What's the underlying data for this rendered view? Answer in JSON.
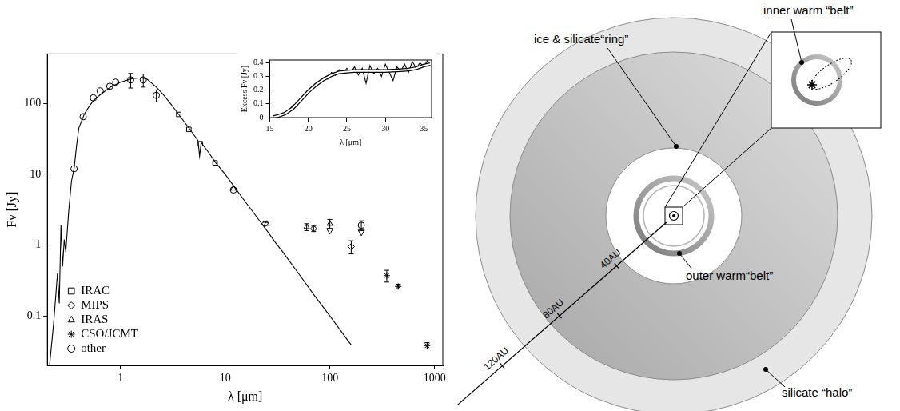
{
  "chart_data": [
    {
      "type": "scatter",
      "x_label": "λ [μm]",
      "y_label": "Fν [Jy]",
      "log": true,
      "grid": false,
      "legend": "lower left",
      "xlim": [
        0.2,
        1200
      ],
      "xticks": [
        1,
        10,
        100,
        1000
      ],
      "ylim": [
        0.02,
        500
      ],
      "yticks": [
        0.1,
        1,
        10,
        100
      ],
      "series": [
        {
          "type": "line",
          "color": "#000000",
          "marker": "none",
          "line_style": "solid",
          "x": [
            0.21,
            0.23,
            0.25,
            0.26,
            0.27,
            0.28,
            0.29,
            0.3,
            0.32,
            0.34,
            0.36,
            0.38,
            0.4,
            0.45,
            0.5,
            0.55,
            0.65,
            0.8,
            1.0,
            1.3,
            1.6,
            1.8,
            2.2,
            2.6,
            3.0,
            3.6,
            4.5,
            5.5,
            5.7,
            5.9,
            7,
            8,
            10,
            12,
            15,
            20,
            25,
            30,
            35,
            50,
            70,
            100,
            150,
            160
          ],
          "values": [
            0.02,
            0.08,
            0.4,
            0.15,
            1.9,
            0.5,
            1.2,
            0.8,
            3,
            8,
            12,
            25,
            45,
            70,
            90,
            110,
            135,
            170,
            200,
            225,
            230,
            220,
            170,
            130,
            100,
            70,
            45,
            30,
            18,
            28,
            20,
            15,
            10,
            6.9,
            4.4,
            2.5,
            1.6,
            1.1,
            0.82,
            0.4,
            0.2,
            0.1,
            0.044,
            0.039
          ]
        },
        {
          "name": "IRAC",
          "type": "scatter",
          "color": "#000000",
          "marker": "square",
          "x": [
            3.6,
            4.5,
            5.8,
            8
          ],
          "values": [
            70,
            43,
            27,
            14.5
          ]
        },
        {
          "name": "MIPS",
          "type": "scatter",
          "color": "#000000",
          "marker": "diamond",
          "x": [
            24,
            70,
            160
          ],
          "values": [
            2.0,
            1.7,
            0.95
          ],
          "errors": [
            0.1,
            0.15,
            0.2
          ]
        },
        {
          "name": "IRAS",
          "type": "scatter",
          "color": "#000000",
          "marker": "triangle",
          "x": [
            12,
            25,
            60,
            100
          ],
          "values": [
            6.3,
            2.0,
            1.8,
            2.0
          ],
          "errors": [
            null,
            null,
            0.2,
            0.3
          ],
          "upper_limits": [
            false,
            false,
            false,
            true
          ]
        },
        {
          "name": "CSO/JCMT",
          "type": "scatter",
          "color": "#000000",
          "marker": "asterisk",
          "x": [
            350,
            450,
            850
          ],
          "values": [
            0.37,
            0.26,
            0.038
          ],
          "errors": [
            0.07,
            0.02,
            0.004
          ]
        },
        {
          "name": "other",
          "type": "scatter",
          "color": "#000000",
          "marker": "circle",
          "x": [
            0.36,
            0.44,
            0.55,
            0.64,
            0.79,
            0.9,
            1.25,
            1.65,
            2.2,
            12,
            200
          ],
          "values": [
            12,
            65,
            120,
            150,
            175,
            200,
            215,
            215,
            130,
            6.0,
            1.9
          ],
          "errors": [
            null,
            null,
            null,
            null,
            null,
            null,
            50,
            45,
            25,
            null,
            0.3
          ],
          "upper_limits": [
            false,
            false,
            false,
            false,
            false,
            false,
            false,
            false,
            false,
            false,
            true
          ]
        }
      ]
    },
    {
      "type": "line",
      "x_label": "λ [μm]",
      "y_label": "Excess Fν [Jy]",
      "grid": false,
      "xlim": [
        15,
        36
      ],
      "xticks": [
        15,
        20,
        25,
        30,
        35
      ],
      "ylim": [
        0,
        0.42
      ],
      "yticks": [
        0,
        0.1,
        0.2,
        0.3,
        0.4
      ],
      "series": [
        {
          "color": "#000000",
          "line_style": "solid",
          "marker": "none",
          "x": [
            15.5,
            16,
            16.5,
            17,
            17.5,
            18,
            18.5,
            19,
            19.5,
            20,
            20.5,
            21,
            21.5,
            22,
            22.5,
            23,
            23.5,
            24,
            24.5,
            25,
            25.5,
            26,
            26.5,
            27,
            27.5,
            28,
            28.5,
            29,
            29.5,
            30,
            30.5,
            31,
            31.5,
            32,
            32.5,
            33,
            33.5,
            34,
            34.5,
            35,
            35.5
          ],
          "values": [
            0.01,
            0.0,
            0.02,
            0.03,
            0.05,
            0.09,
            0.1,
            0.14,
            0.15,
            0.19,
            0.21,
            0.24,
            0.25,
            0.29,
            0.28,
            0.33,
            0.31,
            0.35,
            0.32,
            0.36,
            0.33,
            0.37,
            0.31,
            0.36,
            0.25,
            0.38,
            0.32,
            0.36,
            0.3,
            0.39,
            0.33,
            0.27,
            0.37,
            0.34,
            0.39,
            0.33,
            0.41,
            0.36,
            0.4,
            0.37,
            0.42
          ]
        },
        {
          "color": "#ffffff",
          "line_style": "outlined",
          "marker": "none",
          "x": [
            15.5,
            16,
            17,
            18,
            19,
            20,
            21,
            22,
            23,
            24,
            25,
            26,
            28,
            30,
            32,
            33,
            34,
            35,
            35.8
          ],
          "values": [
            0.005,
            0.01,
            0.03,
            0.07,
            0.13,
            0.19,
            0.24,
            0.28,
            0.31,
            0.33,
            0.335,
            0.34,
            0.34,
            0.34,
            0.345,
            0.35,
            0.36,
            0.38,
            0.39
          ]
        }
      ]
    }
  ],
  "diagram": {
    "labels": {
      "ring": "ice & silicate“ring”",
      "inner_belt": "inner warm “belt”",
      "outer_belt": "outer warm“belt”",
      "halo": "silicate “halo”"
    },
    "scale_ticks": [
      "40AU",
      "80AU",
      "120AU"
    ]
  }
}
